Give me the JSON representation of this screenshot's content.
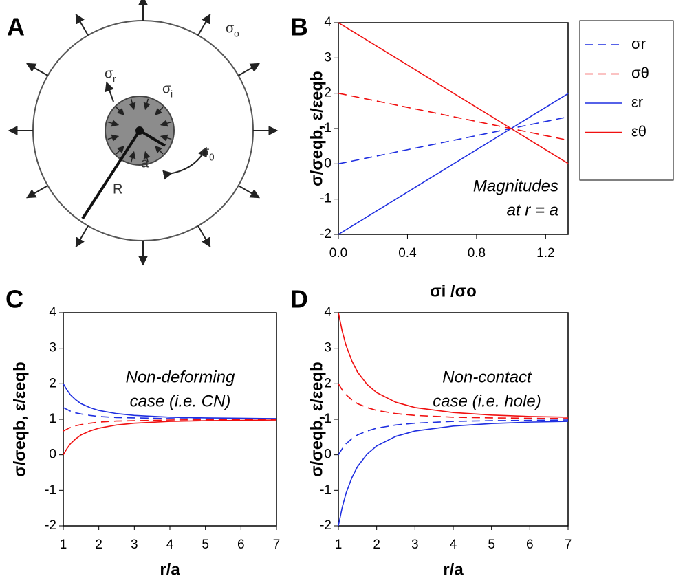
{
  "diagram": {
    "panel_label": "A",
    "labels": [
      {
        "main": "σ",
        "sub": "o"
      },
      {
        "main": "σ",
        "sub": "r"
      },
      {
        "main": "σ",
        "sub": "i"
      },
      {
        "main": "σ",
        "sub": "θ"
      },
      {
        "main": "a"
      },
      {
        "main": "R"
      }
    ]
  },
  "chart_data": [
    {
      "type": "line",
      "panel_label": "B",
      "x_label": "σi /σo",
      "y_label": "σ/σeqb, ε/εeqb",
      "annotation": [
        "Magnitudes",
        "at r = a"
      ],
      "x": [
        0,
        1,
        1.33
      ],
      "series": [
        {
          "name": "σr",
          "color": "#1f2fe0",
          "dash": true,
          "values": [
            0,
            1,
            1.33
          ]
        },
        {
          "name": "σθ",
          "color": "#f01010",
          "dash": true,
          "values": [
            2,
            1,
            0.67
          ]
        },
        {
          "name": "εr",
          "color": "#1f2fe0",
          "dash": false,
          "values": [
            -2,
            1,
            1.99
          ]
        },
        {
          "name": "εθ",
          "color": "#f01010",
          "dash": false,
          "values": [
            4,
            1,
            0.01
          ]
        }
      ],
      "xlim": [
        0,
        1.33
      ],
      "xticks": [
        {
          "value": 0,
          "label": "0.0"
        },
        0.4,
        0.8,
        1.2
      ],
      "ylim": [
        -2,
        4
      ],
      "yticks": [
        -2,
        -1,
        0,
        1,
        2,
        3,
        4
      ],
      "legend": "outside-right"
    },
    {
      "type": "line",
      "panel_label": "C",
      "x_label": "r/a",
      "y_label": "σ/σeqb, ε/εeqb",
      "annotation": [
        "Non-deforming",
        "case (i.e. CN)"
      ],
      "x": [
        1,
        1.1,
        1.2,
        1.35,
        1.5,
        1.75,
        2,
        2.5,
        3,
        4,
        5,
        6,
        7
      ],
      "series": [
        {
          "color": "#1f2fe0",
          "dash": true,
          "values": [
            1.33,
            1.28,
            1.23,
            1.18,
            1.15,
            1.11,
            1.08,
            1.05,
            1.04,
            1.02,
            1.01,
            1.01,
            1.01
          ]
        },
        {
          "color": "#f01010",
          "dash": true,
          "values": [
            0.67,
            0.72,
            0.77,
            0.82,
            0.85,
            0.89,
            0.92,
            0.95,
            0.96,
            0.98,
            0.99,
            0.99,
            0.99
          ]
        },
        {
          "color": "#1f2fe0",
          "dash": false,
          "values": [
            2,
            1.83,
            1.69,
            1.55,
            1.44,
            1.33,
            1.25,
            1.16,
            1.11,
            1.06,
            1.04,
            1.03,
            1.02
          ]
        },
        {
          "color": "#f01010",
          "dash": false,
          "values": [
            0,
            0.17,
            0.31,
            0.45,
            0.56,
            0.67,
            0.75,
            0.84,
            0.89,
            0.94,
            0.96,
            0.97,
            0.98
          ]
        }
      ],
      "xlim": [
        1,
        7
      ],
      "xticks": [
        1,
        2,
        3,
        4,
        5,
        6,
        7
      ],
      "ylim": [
        -2,
        4
      ],
      "yticks": [
        -2,
        -1,
        0,
        1,
        2,
        3,
        4
      ]
    },
    {
      "type": "line",
      "panel_label": "D",
      "x_label": "r/a",
      "y_label": "σ/σeqb, ε/εeqb",
      "annotation": [
        "Non-contact",
        "case (i.e. hole)"
      ],
      "x": [
        1,
        1.1,
        1.2,
        1.35,
        1.5,
        1.75,
        2,
        2.5,
        3,
        4,
        5,
        6,
        7
      ],
      "series": [
        {
          "color": "#1f2fe0",
          "dash": true,
          "values": [
            0,
            0.17,
            0.31,
            0.45,
            0.56,
            0.67,
            0.75,
            0.84,
            0.89,
            0.94,
            0.96,
            0.97,
            0.98
          ]
        },
        {
          "color": "#f01010",
          "dash": true,
          "values": [
            2,
            1.83,
            1.69,
            1.55,
            1.44,
            1.33,
            1.25,
            1.16,
            1.11,
            1.06,
            1.04,
            1.03,
            1.02
          ]
        },
        {
          "color": "#1f2fe0",
          "dash": false,
          "values": [
            -2,
            -1.48,
            -1.08,
            -0.65,
            -0.33,
            0.02,
            0.25,
            0.52,
            0.67,
            0.81,
            0.88,
            0.92,
            0.94
          ]
        },
        {
          "color": "#f01010",
          "dash": false,
          "values": [
            4,
            3.48,
            3.08,
            2.65,
            2.33,
            1.98,
            1.75,
            1.48,
            1.33,
            1.19,
            1.12,
            1.08,
            1.06
          ]
        }
      ],
      "xlim": [
        1,
        7
      ],
      "xticks": [
        1,
        2,
        3,
        4,
        5,
        6,
        7
      ],
      "ylim": [
        -2,
        4
      ],
      "yticks": [
        -2,
        -1,
        0,
        1,
        2,
        3,
        4
      ]
    }
  ]
}
